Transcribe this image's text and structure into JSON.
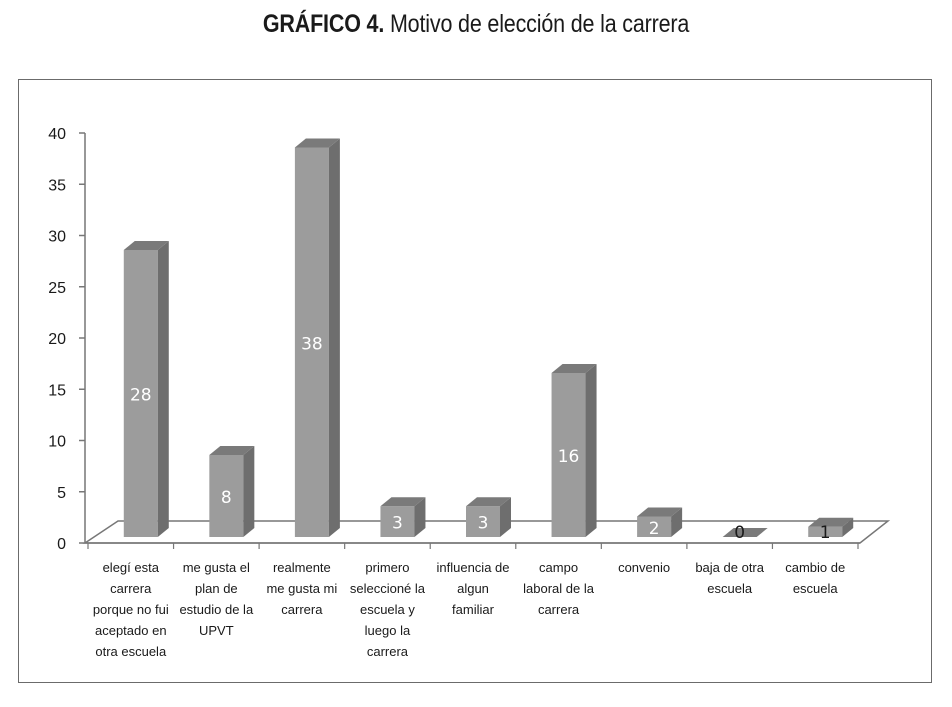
{
  "title": {
    "bold": "GRÁFICO 4.",
    "rest": " Motivo de elección de la carrera"
  },
  "chart_data": {
    "type": "bar",
    "title": "GRÁFICO 4. Motivo de elección de la carrera",
    "categories": [
      [
        "elegí esta",
        "carrera",
        "porque no fui",
        "aceptado en",
        "otra escuela"
      ],
      [
        "me gusta el",
        "plan de",
        "estudio de la",
        "UPVT"
      ],
      [
        "realmente",
        "me gusta mi",
        "carrera"
      ],
      [
        "primero",
        "seleccioné la",
        "escuela y",
        "luego la",
        "carrera"
      ],
      [
        "influencia de",
        "algun",
        "familiar"
      ],
      [
        "campo",
        "laboral de la",
        "carrera"
      ],
      [
        "convenio"
      ],
      [
        "baja de otra",
        "escuela"
      ],
      [
        "cambio de",
        "escuela"
      ]
    ],
    "values": [
      28,
      8,
      38,
      3,
      3,
      16,
      2,
      0,
      1
    ],
    "value_labels": [
      "28",
      "8",
      "38",
      "3",
      "3",
      "16",
      "2",
      "0",
      "1"
    ],
    "ylim": [
      0,
      40
    ],
    "yticks": [
      "0",
      "5",
      "10",
      "15",
      "20",
      "25",
      "30",
      "35",
      "40"
    ],
    "grid": false,
    "legend": "none",
    "style": "3d-column",
    "colors": {
      "bar_front": "#9c9c9c",
      "bar_side": "#6e6e6e",
      "bar_top": "#7a7a7a",
      "floor": "#ffffff",
      "axis": "#777777"
    }
  }
}
